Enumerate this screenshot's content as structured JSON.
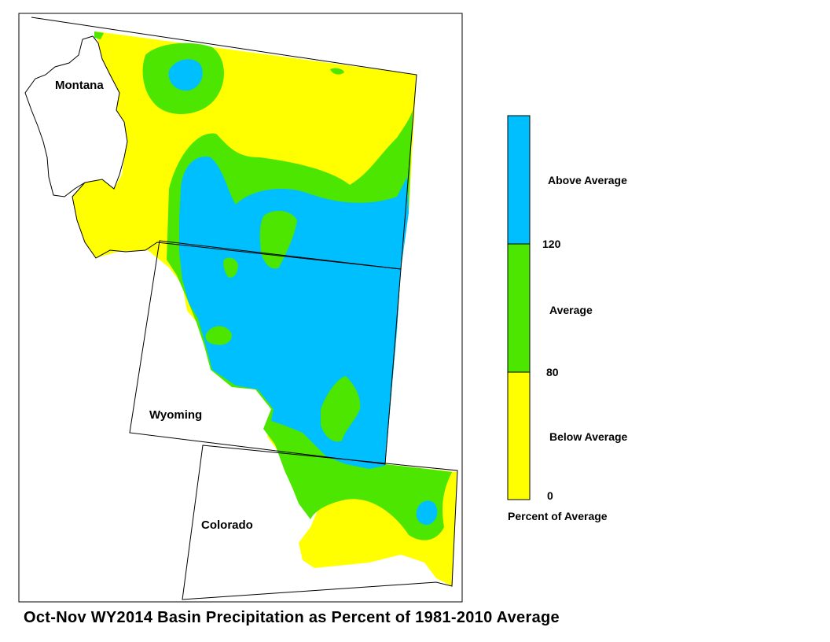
{
  "states": [
    {
      "name": "Montana"
    },
    {
      "name": "Wyoming"
    },
    {
      "name": "Colorado"
    }
  ],
  "legend": {
    "title": "Percent of Average",
    "classes": [
      {
        "label": "Above Average",
        "color": "#00BFFF"
      },
      {
        "label": "Average",
        "color": "#4CE600"
      },
      {
        "label": "Below Average",
        "color": "#FFFF00"
      }
    ],
    "ticks": [
      "120",
      "80",
      "0"
    ]
  },
  "caption": "Oct-Nov WY2014 Basin Precipitation as Percent of 1981-2010 Average"
}
